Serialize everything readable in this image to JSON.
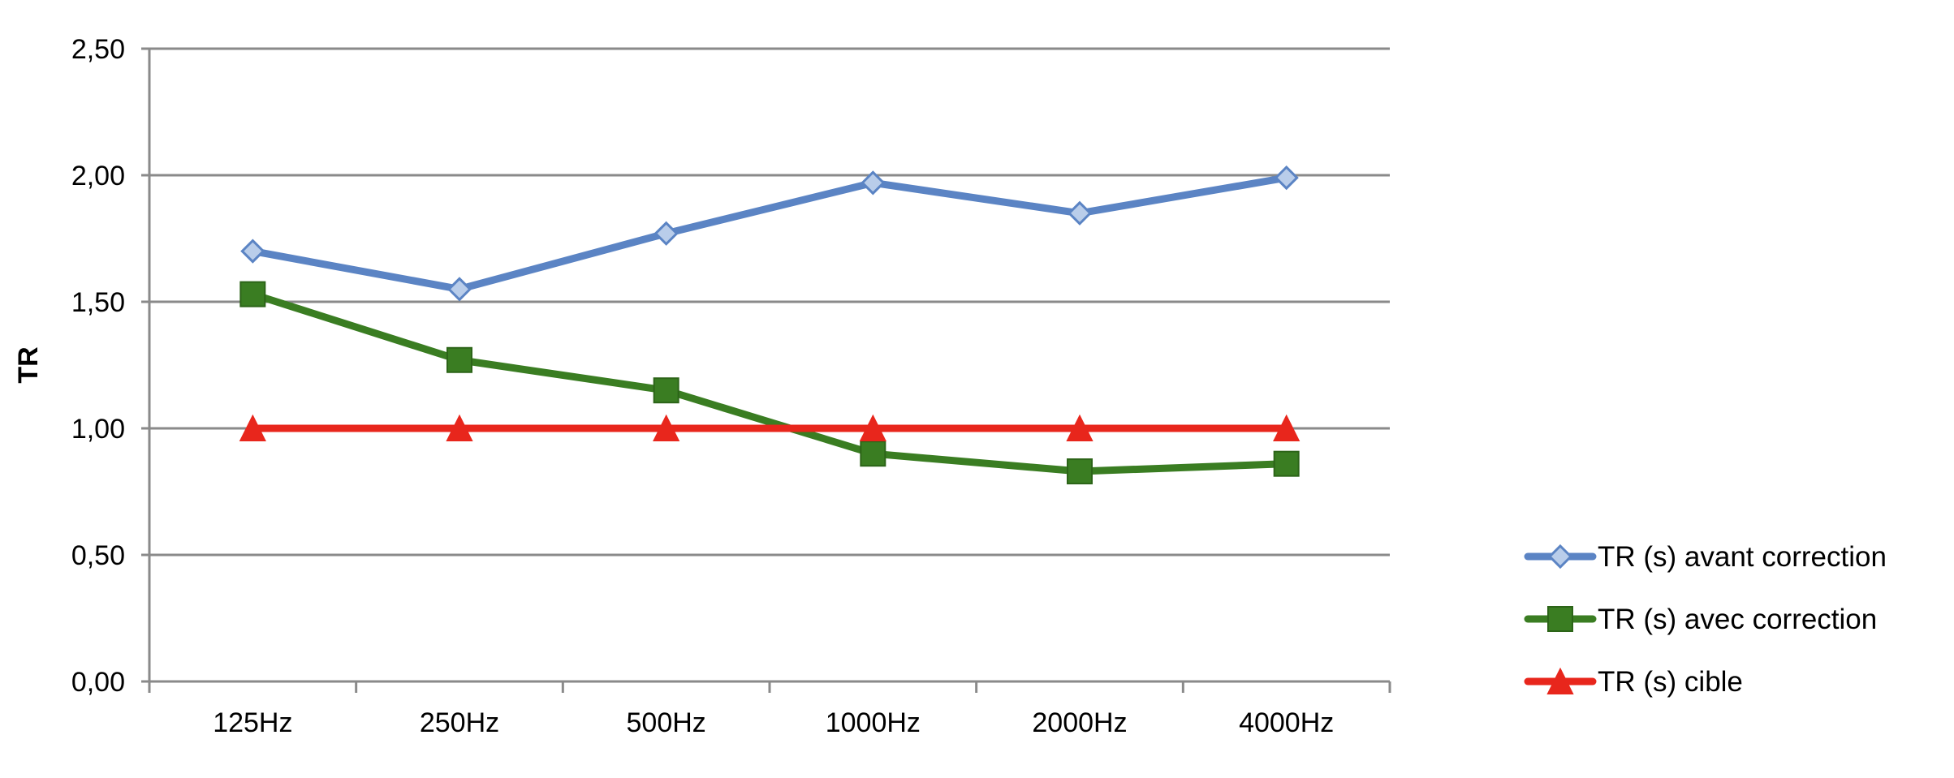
{
  "chart_data": {
    "type": "line",
    "categories": [
      "125Hz",
      "250Hz",
      "500Hz",
      "1000Hz",
      "2000Hz",
      "4000Hz"
    ],
    "ylabel": "TR",
    "xlabel": "",
    "ylim": [
      0,
      2.5
    ],
    "yticks": [
      "0,00",
      "0,50",
      "1,00",
      "1,50",
      "2,00",
      "2,50"
    ],
    "grid": true,
    "legend_position": "right",
    "series": [
      {
        "name": "TR (s) avant correction",
        "values": [
          1.7,
          1.55,
          1.77,
          1.97,
          1.85,
          1.99
        ],
        "color": "#5b84c4",
        "marker": "diamond"
      },
      {
        "name": "TR (s) avec correction",
        "values": [
          1.53,
          1.27,
          1.15,
          0.9,
          0.83,
          0.86
        ],
        "color": "#3a7d22",
        "marker": "square"
      },
      {
        "name": "TR (s) cible",
        "values": [
          1.0,
          1.0,
          1.0,
          1.0,
          1.0,
          1.0
        ],
        "color": "#e8261c",
        "marker": "triangle"
      }
    ]
  }
}
